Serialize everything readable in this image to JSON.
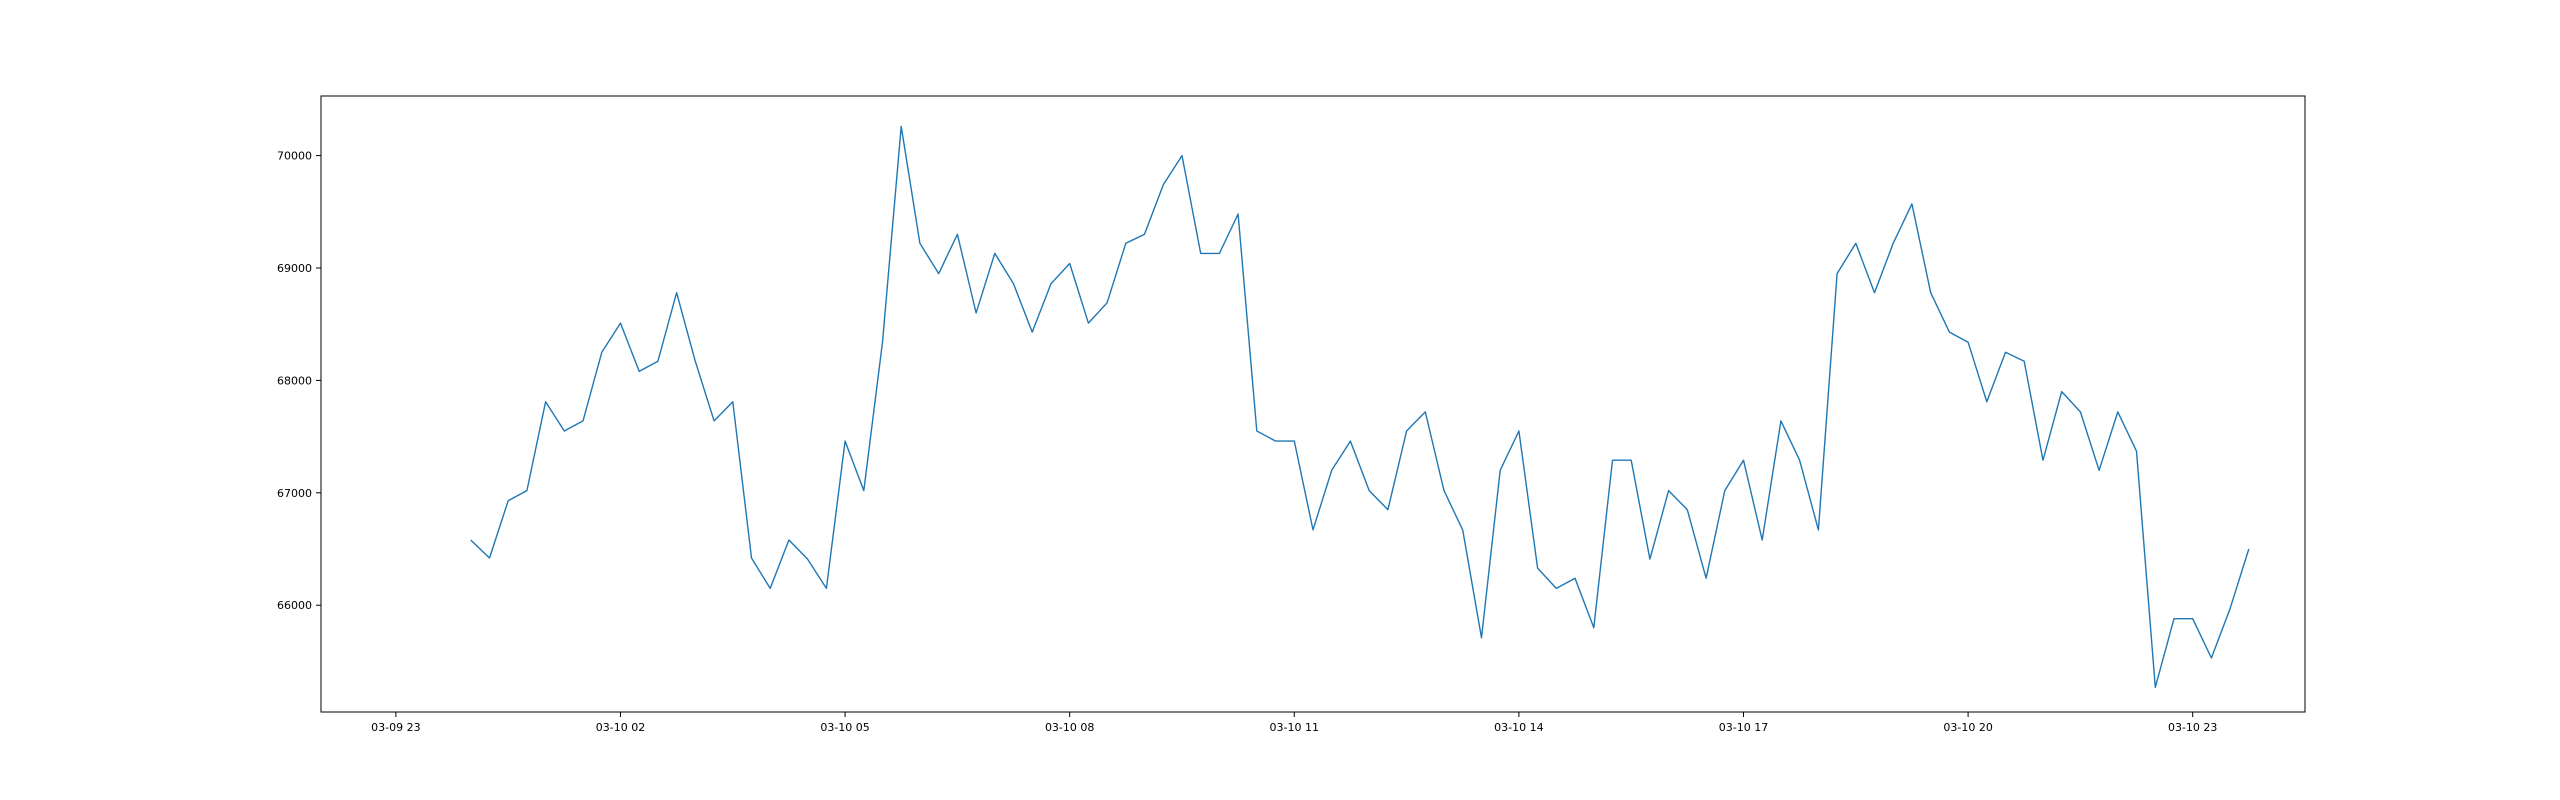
{
  "chart_data": {
    "type": "line",
    "title": "",
    "xlabel": "",
    "ylabel": "",
    "grid": false,
    "legend": "none",
    "line_color": "#1f77b4",
    "x_start": "2024-03-10 00:00",
    "x_step_minutes": 15,
    "xlim": [
      "2024-03-09 22:00",
      "2024-03-11 00:30"
    ],
    "ylim": [
      65050,
      70530
    ],
    "x_ticks": [
      {
        "label": "03-09 23",
        "value": "2024-03-09 23:00"
      },
      {
        "label": "03-10 02",
        "value": "2024-03-10 02:00"
      },
      {
        "label": "03-10 05",
        "value": "2024-03-10 05:00"
      },
      {
        "label": "03-10 08",
        "value": "2024-03-10 08:00"
      },
      {
        "label": "03-10 11",
        "value": "2024-03-10 11:00"
      },
      {
        "label": "03-10 14",
        "value": "2024-03-10 14:00"
      },
      {
        "label": "03-10 17",
        "value": "2024-03-10 17:00"
      },
      {
        "label": "03-10 20",
        "value": "2024-03-10 20:00"
      },
      {
        "label": "03-10 23",
        "value": "2024-03-10 23:00"
      }
    ],
    "y_ticks": [
      {
        "label": "66000",
        "value": 66000
      },
      {
        "label": "67000",
        "value": 67000
      },
      {
        "label": "68000",
        "value": 68000
      },
      {
        "label": "69000",
        "value": 69000
      },
      {
        "label": "70000",
        "value": 70000
      }
    ],
    "values": [
      66580,
      66420,
      66930,
      67020,
      67810,
      67550,
      67640,
      68250,
      68510,
      68080,
      68170,
      68780,
      68170,
      67640,
      67810,
      66420,
      66150,
      66580,
      66410,
      66150,
      67460,
      67020,
      68340,
      70260,
      69220,
      68950,
      69300,
      68600,
      69130,
      68860,
      68430,
      68860,
      69040,
      68510,
      68690,
      69220,
      69300,
      69740,
      70000,
      69130,
      69130,
      69480,
      67550,
      67460,
      67460,
      66670,
      67200,
      67460,
      67020,
      66850,
      67550,
      67720,
      67020,
      66670,
      65710,
      67200,
      67550,
      66330,
      66150,
      66240,
      65800,
      67290,
      67290,
      66410,
      67020,
      66850,
      66240,
      67020,
      67290,
      66580,
      67640,
      67290,
      66670,
      68950,
      69220,
      68780,
      69220,
      69570,
      68780,
      68430,
      68340,
      67810,
      68250,
      68170,
      67290,
      67900,
      67720,
      67200,
      67720,
      67370,
      65270,
      65880,
      65880,
      65530,
      65970,
      66500
    ]
  }
}
